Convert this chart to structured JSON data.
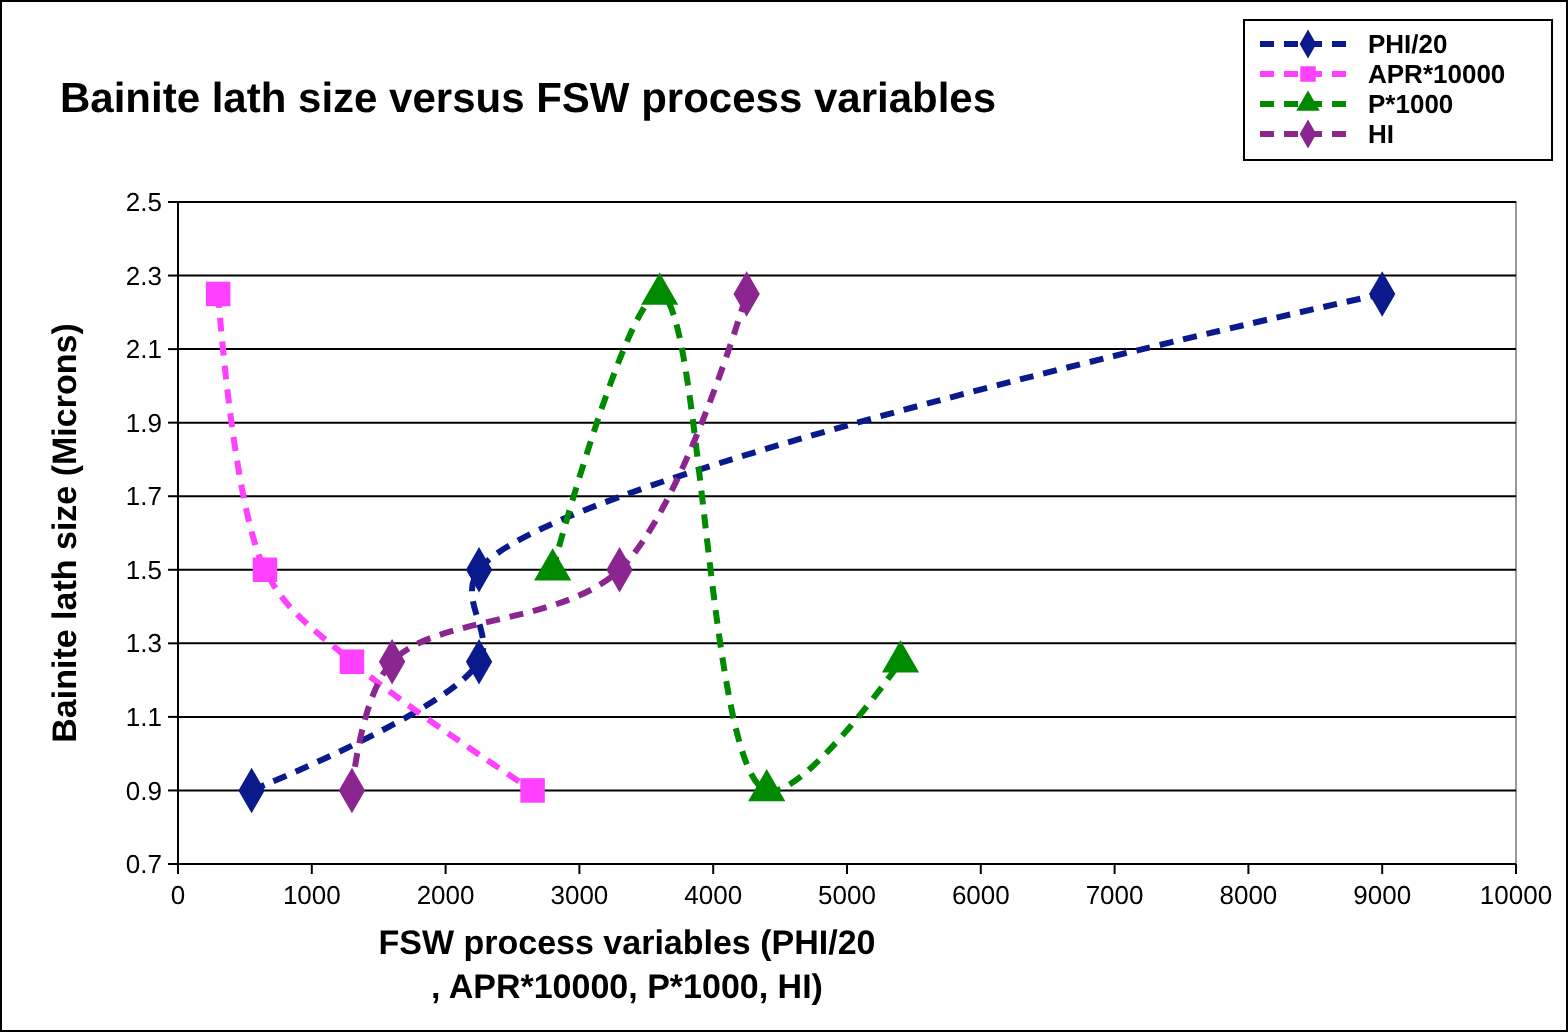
{
  "chart_data": {
    "type": "line",
    "title": "Bainite lath size versus FSW process variables",
    "xlabel": "FSW process variables (PHI/20 , APR*10000, P*1000, HI)",
    "ylabel": "Bainite lath size (Microns)",
    "xlim": [
      0,
      10000
    ],
    "xticks": [
      0,
      1000,
      2000,
      3000,
      4000,
      5000,
      6000,
      7000,
      8000,
      9000,
      10000
    ],
    "ylim": [
      0.7,
      2.5
    ],
    "yticks": [
      0.7,
      0.9,
      1.1,
      1.3,
      1.5,
      1.7,
      1.9,
      2.1,
      2.3,
      2.5
    ],
    "grid": "y",
    "legend": "top right",
    "line_style": "dashed",
    "series": [
      {
        "name": "PHI/20",
        "color": "#0a1a8c",
        "marker": "diamond",
        "x": [
          550,
          2250,
          2250,
          9000
        ],
        "values": [
          0.9,
          1.25,
          1.5,
          2.25
        ]
      },
      {
        "name": "APR*10000",
        "color": "#ff40ff",
        "marker": "square",
        "x": [
          300,
          650,
          1300,
          2650
        ],
        "values": [
          2.25,
          1.5,
          1.25,
          0.9
        ]
      },
      {
        "name": "P*1000",
        "color": "#008a00",
        "marker": "triangle",
        "x": [
          2800,
          3600,
          4400,
          5400
        ],
        "values": [
          1.5,
          2.25,
          0.9,
          1.25
        ]
      },
      {
        "name": "HI",
        "color": "#8b2590",
        "marker": "diamond",
        "x": [
          1300,
          1600,
          3300,
          4250
        ],
        "values": [
          0.9,
          1.25,
          1.5,
          2.25
        ]
      }
    ]
  }
}
